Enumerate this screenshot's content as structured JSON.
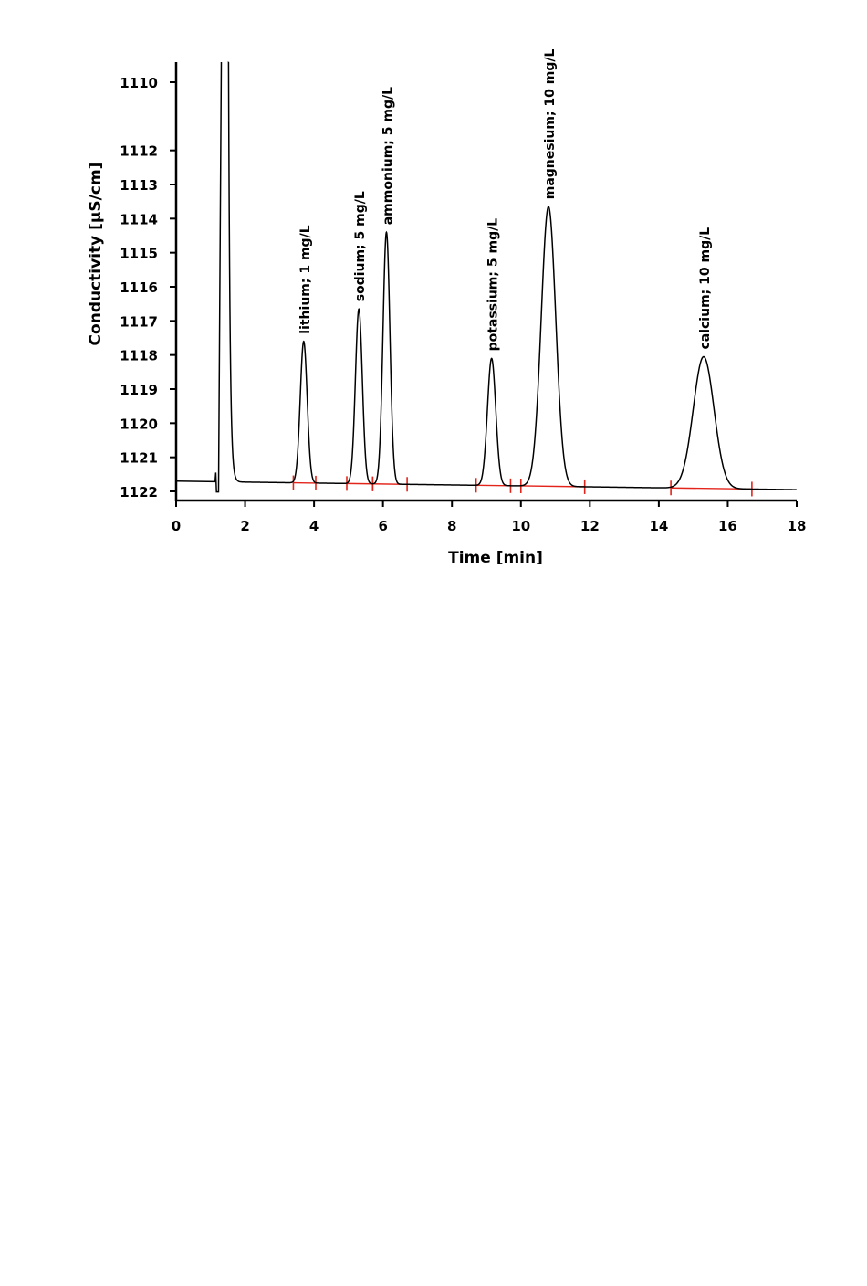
{
  "chart_data": {
    "type": "line",
    "title": "",
    "xlabel": "Time [min]",
    "ylabel": "Conductivity [µS/cm]",
    "xlim": [
      0,
      18
    ],
    "ylim": [
      1122,
      1110
    ],
    "y_axis_inverted": true,
    "grid": false,
    "x_ticks": [
      0,
      2,
      4,
      6,
      8,
      10,
      12,
      14,
      16,
      18
    ],
    "y_ticks": [
      1110,
      1112,
      1113,
      1114,
      1115,
      1116,
      1117,
      1118,
      1119,
      1120,
      1121,
      1122
    ],
    "series": [
      {
        "color": "#000000",
        "baseline": {
          "start": 1121.7,
          "end": 1121.95
        },
        "system_peak": {
          "start": 1.15,
          "end": 1.85,
          "note_top": "off-scale"
        },
        "peaks": [
          {
            "label": "lithium; 1 mg/L",
            "time": 3.7,
            "apex": 1117.6,
            "width": 0.1
          },
          {
            "label": "sodium; 5 mg/L",
            "time": 5.3,
            "apex": 1116.65,
            "width": 0.1
          },
          {
            "label": "ammonium; 5 mg/L",
            "time": 6.1,
            "apex": 1114.4,
            "width": 0.1
          },
          {
            "label": "potassium; 5 mg/L",
            "time": 9.15,
            "apex": 1118.1,
            "width": 0.12
          },
          {
            "label": "magnesium; 10 mg/L",
            "time": 10.8,
            "apex": 1113.65,
            "width": 0.21
          },
          {
            "label": "calcium; 10 mg/L",
            "time": 15.3,
            "apex": 1118.05,
            "width": 0.3
          }
        ]
      }
    ],
    "integration_baselines": {
      "color": "#e3241b",
      "segments": [
        {
          "start": 3.4,
          "end": 4.05
        },
        {
          "start": 4.95,
          "end": 5.7
        },
        {
          "start": 5.7,
          "end": 6.7
        },
        {
          "start": 8.7,
          "end": 9.7
        },
        {
          "start": 10.0,
          "end": 11.85
        },
        {
          "start": 14.35,
          "end": 16.7
        }
      ]
    }
  }
}
